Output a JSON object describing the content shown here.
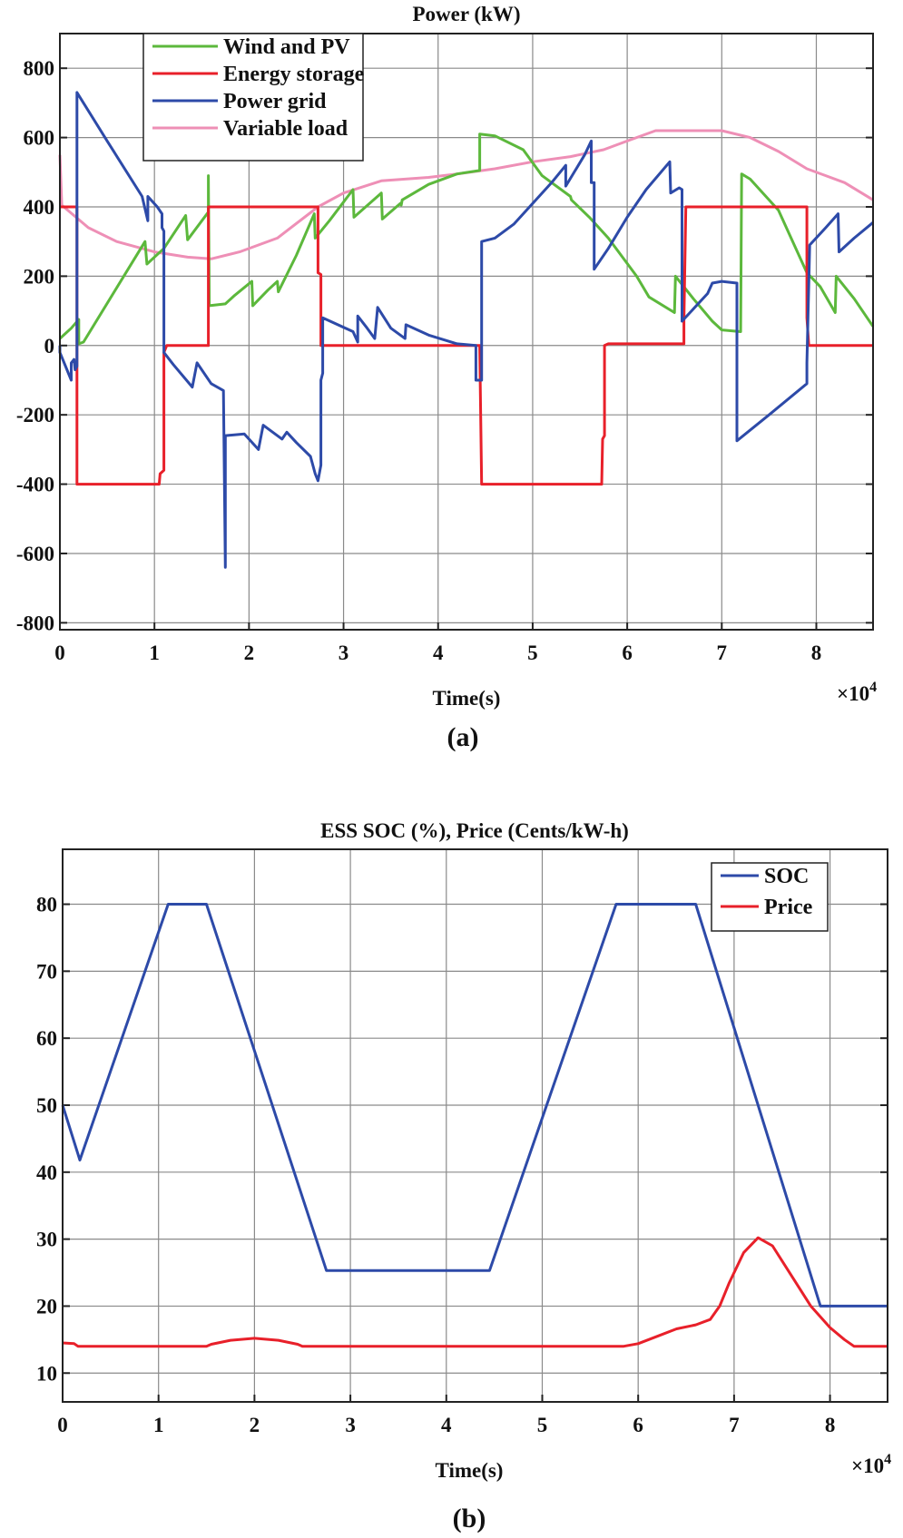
{
  "figure": {
    "panel_a_caption": "(a)",
    "panel_b_caption": "(b)"
  },
  "chart_data": [
    {
      "type": "line",
      "title": "Power  (kW)",
      "xlabel": "Time(s)",
      "x_multiplier": "×10^4",
      "x_multiplier_base": "×10",
      "x_multiplier_exp": "4",
      "ylabel": "",
      "xlim": [
        0,
        8.6
      ],
      "ylim": [
        -820,
        900
      ],
      "xticks": [
        "0",
        "1",
        "2",
        "3",
        "4",
        "5",
        "6",
        "7",
        "8"
      ],
      "yticks": [
        "800",
        "600",
        "400",
        "200",
        "0",
        "-200",
        "-400",
        "-600",
        "-800"
      ],
      "grid": true,
      "legend_position": "upper-left",
      "series": [
        {
          "name": "Wind and PV",
          "color": "#5cb83c",
          "points": [
            [
              0,
              20
            ],
            [
              0.12,
              50
            ],
            [
              0.2,
              75
            ],
            [
              0.2,
              5
            ],
            [
              0.25,
              10
            ],
            [
              0.9,
              300
            ],
            [
              0.92,
              235
            ],
            [
              1.1,
              280
            ],
            [
              1.33,
              375
            ],
            [
              1.35,
              305
            ],
            [
              1.57,
              385
            ],
            [
              1.57,
              490
            ],
            [
              1.58,
              115
            ],
            [
              1.75,
              120
            ],
            [
              1.85,
              145
            ],
            [
              2.03,
              185
            ],
            [
              2.04,
              115
            ],
            [
              2.2,
              160
            ],
            [
              2.3,
              185
            ],
            [
              2.31,
              155
            ],
            [
              2.5,
              260
            ],
            [
              2.69,
              380
            ],
            [
              2.7,
              310
            ],
            [
              2.85,
              360
            ],
            [
              3.1,
              450
            ],
            [
              3.11,
              370
            ],
            [
              3.4,
              440
            ],
            [
              3.41,
              365
            ],
            [
              3.6,
              410
            ],
            [
              3.61,
              405
            ],
            [
              3.62,
              420
            ],
            [
              3.9,
              465
            ],
            [
              4.2,
              495
            ],
            [
              4.44,
              505
            ],
            [
              4.44,
              610
            ],
            [
              4.6,
              605
            ],
            [
              4.9,
              565
            ],
            [
              5.1,
              490
            ],
            [
              5.4,
              430
            ],
            [
              5.41,
              420
            ],
            [
              5.6,
              370
            ],
            [
              5.8,
              310
            ],
            [
              6.1,
              200
            ],
            [
              6.23,
              140
            ],
            [
              6.5,
              95
            ],
            [
              6.51,
              200
            ],
            [
              6.7,
              135
            ],
            [
              6.9,
              70
            ],
            [
              7.0,
              45
            ],
            [
              7.2,
              40
            ],
            [
              7.21,
              495
            ],
            [
              7.3,
              480
            ],
            [
              7.6,
              390
            ],
            [
              7.9,
              210
            ],
            [
              8.04,
              170
            ],
            [
              8.2,
              95
            ],
            [
              8.21,
              200
            ],
            [
              8.4,
              135
            ],
            [
              8.6,
              55
            ]
          ]
        },
        {
          "name": "Energy storage",
          "color": "#e8202a",
          "points": [
            [
              0,
              400
            ],
            [
              0.18,
              400
            ],
            [
              0.18,
              -30
            ],
            [
              0.18,
              -400
            ],
            [
              1.05,
              -400
            ],
            [
              1.06,
              -370
            ],
            [
              1.1,
              -360
            ],
            [
              1.1,
              -20
            ],
            [
              1.13,
              0
            ],
            [
              1.57,
              0
            ],
            [
              1.57,
              400
            ],
            [
              2.73,
              400
            ],
            [
              2.73,
              210
            ],
            [
              2.76,
              205
            ],
            [
              2.76,
              0
            ],
            [
              4.44,
              0
            ],
            [
              4.46,
              -400
            ],
            [
              5.73,
              -400
            ],
            [
              5.74,
              -270
            ],
            [
              5.76,
              -260
            ],
            [
              5.76,
              0
            ],
            [
              5.8,
              5
            ],
            [
              6.6,
              5
            ],
            [
              6.6,
              70
            ],
            [
              6.62,
              400
            ],
            [
              7.9,
              400
            ],
            [
              7.9,
              80
            ],
            [
              7.92,
              0
            ],
            [
              8.6,
              0
            ]
          ]
        },
        {
          "name": "Power grid",
          "color": "#2d4aa8",
          "points": [
            [
              0,
              0
            ],
            [
              0,
              -20
            ],
            [
              0.12,
              -100
            ],
            [
              0.12,
              -50
            ],
            [
              0.15,
              -40
            ],
            [
              0.16,
              -70
            ],
            [
              0.18,
              -60
            ],
            [
              0.18,
              730
            ],
            [
              0.5,
              590
            ],
            [
              0.87,
              430
            ],
            [
              0.93,
              360
            ],
            [
              0.93,
              430
            ],
            [
              1.03,
              400
            ],
            [
              1.08,
              380
            ],
            [
              1.08,
              340
            ],
            [
              1.1,
              330
            ],
            [
              1.1,
              -20
            ],
            [
              1.2,
              -55
            ],
            [
              1.4,
              -120
            ],
            [
              1.45,
              -50
            ],
            [
              1.6,
              -110
            ],
            [
              1.73,
              -130
            ],
            [
              1.75,
              -640
            ],
            [
              1.75,
              -260
            ],
            [
              1.95,
              -255
            ],
            [
              2.1,
              -300
            ],
            [
              2.15,
              -230
            ],
            [
              2.35,
              -270
            ],
            [
              2.4,
              -250
            ],
            [
              2.5,
              -280
            ],
            [
              2.65,
              -320
            ],
            [
              2.7,
              -370
            ],
            [
              2.73,
              -390
            ],
            [
              2.76,
              -345
            ],
            [
              2.76,
              -100
            ],
            [
              2.78,
              -80
            ],
            [
              2.78,
              80
            ],
            [
              3.1,
              40
            ],
            [
              3.15,
              10
            ],
            [
              3.15,
              85
            ],
            [
              3.25,
              50
            ],
            [
              3.33,
              20
            ],
            [
              3.36,
              110
            ],
            [
              3.5,
              50
            ],
            [
              3.65,
              20
            ],
            [
              3.66,
              60
            ],
            [
              3.9,
              30
            ],
            [
              4.2,
              5
            ],
            [
              4.4,
              0
            ],
            [
              4.4,
              -100
            ],
            [
              4.46,
              -100
            ],
            [
              4.46,
              300
            ],
            [
              4.6,
              310
            ],
            [
              4.8,
              350
            ],
            [
              5.0,
              410
            ],
            [
              5.2,
              470
            ],
            [
              5.35,
              520
            ],
            [
              5.35,
              460
            ],
            [
              5.55,
              550
            ],
            [
              5.62,
              590
            ],
            [
              5.62,
              470
            ],
            [
              5.65,
              470
            ],
            [
              5.65,
              220
            ],
            [
              5.8,
              280
            ],
            [
              6.0,
              370
            ],
            [
              6.2,
              450
            ],
            [
              6.45,
              530
            ],
            [
              6.46,
              440
            ],
            [
              6.55,
              455
            ],
            [
              6.58,
              450
            ],
            [
              6.58,
              70
            ],
            [
              6.85,
              150
            ],
            [
              6.9,
              180
            ],
            [
              7.0,
              185
            ],
            [
              7.16,
              180
            ],
            [
              7.16,
              -275
            ],
            [
              7.5,
              -200
            ],
            [
              7.9,
              -110
            ],
            [
              7.9,
              -50
            ],
            [
              7.92,
              180
            ],
            [
              7.93,
              290
            ],
            [
              8.1,
              340
            ],
            [
              8.23,
              380
            ],
            [
              8.24,
              270
            ],
            [
              8.4,
              310
            ],
            [
              8.6,
              355
            ]
          ]
        },
        {
          "name": "Variable load",
          "color": "#ee8fb6",
          "points": [
            [
              0,
              550
            ],
            [
              0.02,
              405
            ],
            [
              0.3,
              340
            ],
            [
              0.6,
              300
            ],
            [
              1.0,
              270
            ],
            [
              1.35,
              255
            ],
            [
              1.6,
              250
            ],
            [
              1.9,
              270
            ],
            [
              2.3,
              310
            ],
            [
              2.73,
              400
            ],
            [
              3.0,
              440
            ],
            [
              3.4,
              475
            ],
            [
              3.9,
              485
            ],
            [
              4.2,
              495
            ],
            [
              4.6,
              510
            ],
            [
              5.0,
              530
            ],
            [
              5.4,
              545
            ],
            [
              5.75,
              565
            ],
            [
              6.0,
              590
            ],
            [
              6.3,
              620
            ],
            [
              6.6,
              620
            ],
            [
              7.0,
              620
            ],
            [
              7.3,
              600
            ],
            [
              7.6,
              560
            ],
            [
              7.9,
              510
            ],
            [
              8.1,
              490
            ],
            [
              8.3,
              470
            ],
            [
              8.6,
              420
            ]
          ]
        }
      ]
    },
    {
      "type": "line",
      "title": "ESS SOC (%), Price (Cents/kW-h)",
      "xlabel": "Time(s)",
      "x_multiplier": "×10^4",
      "x_multiplier_base": "×10",
      "x_multiplier_exp": "4",
      "ylabel": "",
      "xlim": [
        0,
        8.6
      ],
      "ylim": [
        5.7,
        88.2
      ],
      "xticks": [
        "0",
        "1",
        "2",
        "3",
        "4",
        "5",
        "6",
        "7",
        "8"
      ],
      "yticks": [
        "80",
        "70",
        "60",
        "50",
        "40",
        "30",
        "20",
        "10"
      ],
      "grid": true,
      "legend_position": "upper-right",
      "series": [
        {
          "name": "SOC",
          "color": "#2d4aa8",
          "points": [
            [
              0,
              50
            ],
            [
              0.18,
              41.8
            ],
            [
              1.1,
              80
            ],
            [
              1.5,
              80
            ],
            [
              2.75,
              25.3
            ],
            [
              4.45,
              25.3
            ],
            [
              5.77,
              80
            ],
            [
              6.6,
              80
            ],
            [
              7.9,
              20
            ],
            [
              8.6,
              20
            ]
          ]
        },
        {
          "name": "Price",
          "color": "#e8202a",
          "points": [
            [
              0,
              14.5
            ],
            [
              0.12,
              14.4
            ],
            [
              0.16,
              14
            ],
            [
              1.5,
              14
            ],
            [
              1.55,
              14.3
            ],
            [
              1.75,
              14.9
            ],
            [
              2.0,
              15.2
            ],
            [
              2.25,
              14.9
            ],
            [
              2.45,
              14.3
            ],
            [
              2.5,
              14
            ],
            [
              5.85,
              14
            ],
            [
              6.0,
              14.4
            ],
            [
              6.2,
              15.5
            ],
            [
              6.4,
              16.6
            ],
            [
              6.6,
              17.2
            ],
            [
              6.75,
              18
            ],
            [
              6.85,
              20
            ],
            [
              6.95,
              23.5
            ],
            [
              7.1,
              28
            ],
            [
              7.25,
              30.2
            ],
            [
              7.4,
              29
            ],
            [
              7.6,
              24.5
            ],
            [
              7.8,
              20
            ],
            [
              8.0,
              16.8
            ],
            [
              8.15,
              15
            ],
            [
              8.25,
              14
            ],
            [
              8.6,
              14
            ]
          ]
        }
      ]
    }
  ]
}
